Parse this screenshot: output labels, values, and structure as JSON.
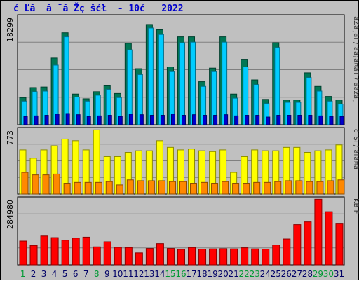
{
  "title": "ć Ľă  ă ¨ă Žç šćł  - 10ć   2022",
  "colors": {
    "background": "#c0c0c0",
    "panel": "#c0c0c0",
    "title": "#0000cc",
    "hits": "#007755",
    "files": "#00ccff",
    "pages": "#0000cc",
    "visits": "#ffff00",
    "sites": "#ff8800",
    "kbytes": "#ff0000",
    "weekday": "#000066",
    "weekend": "#009933"
  },
  "chart_data": [
    {
      "type": "bar",
      "panel": "top",
      "max_label": "18299",
      "ylim": [
        0,
        18299
      ],
      "legend_placement": "right",
      "legend": "ăŻă¸ăľ / ăă¡ă¤ăŤ / ăăźă¸",
      "categories": [
        "1",
        "2",
        "3",
        "4",
        "5",
        "6",
        "7",
        "8",
        "9",
        "10",
        "11",
        "12",
        "13",
        "14",
        "15",
        "16",
        "17",
        "18",
        "19",
        "20",
        "21",
        "22",
        "23",
        "24",
        "25",
        "26",
        "27",
        "28",
        "29",
        "30",
        "31"
      ],
      "series": [
        {
          "name": "ăŻă¸ăľ",
          "values": [
            4600,
            6300,
            6400,
            11300,
            15600,
            5200,
            4400,
            5600,
            6600,
            5300,
            13800,
            9500,
            17000,
            16100,
            9800,
            14900,
            14900,
            7300,
            9600,
            14900,
            5200,
            11100,
            7600,
            4300,
            13900,
            4200,
            4200,
            8800,
            6500,
            4800,
            4200
          ]
        },
        {
          "name": "ăăĄă¤ăŤ",
          "values": [
            4000,
            5600,
            5700,
            10100,
            14900,
            4700,
            4000,
            5000,
            6000,
            4600,
            12700,
            8500,
            16400,
            15300,
            9000,
            13900,
            14000,
            6500,
            9000,
            14000,
            4500,
            9800,
            6800,
            3600,
            13100,
            3800,
            3800,
            8000,
            5700,
            4000,
            3500
          ]
        },
        {
          "name": "ăăźă¸",
          "values": [
            1400,
            1500,
            1600,
            1800,
            1900,
            1700,
            1400,
            1500,
            1600,
            1400,
            1800,
            1700,
            1600,
            1600,
            1800,
            1600,
            1700,
            1600,
            1600,
            1700,
            1500,
            1600,
            1600,
            1300,
            1600,
            1600,
            1600,
            1600,
            1500,
            1400,
            1400
          ]
        }
      ]
    },
    {
      "type": "bar",
      "panel": "middle",
      "max_label": "773",
      "ylim": [
        0,
        773
      ],
      "legend_placement": "right",
      "legend": "č¨Şĺ / ăľă¤ă",
      "categories": [
        "1",
        "2",
        "3",
        "4",
        "5",
        "6",
        "7",
        "8",
        "9",
        "10",
        "11",
        "12",
        "13",
        "14",
        "15",
        "16",
        "17",
        "18",
        "19",
        "20",
        "21",
        "22",
        "23",
        "24",
        "25",
        "26",
        "27",
        "28",
        "29",
        "30",
        "31"
      ],
      "series": [
        {
          "name": "č¨Şĺ",
          "values": [
            530,
            430,
            530,
            580,
            660,
            640,
            530,
            770,
            450,
            450,
            500,
            520,
            520,
            640,
            560,
            530,
            540,
            520,
            510,
            530,
            260,
            450,
            530,
            520,
            520,
            560,
            560,
            500,
            520,
            530,
            590
          ]
        },
        {
          "name": "ăľă¤ă",
          "values": [
            260,
            230,
            230,
            240,
            130,
            140,
            140,
            140,
            150,
            110,
            170,
            160,
            160,
            160,
            150,
            150,
            130,
            140,
            130,
            150,
            130,
            130,
            140,
            140,
            150,
            160,
            160,
            150,
            150,
            160,
            170
          ]
        }
      ]
    },
    {
      "type": "bar",
      "panel": "bottom",
      "max_label": "284980",
      "ylim": [
        0,
        284980
      ],
      "legend_placement": "right",
      "legend": "KB F",
      "categories": [
        "1",
        "2",
        "3",
        "4",
        "5",
        "6",
        "7",
        "8",
        "9",
        "10",
        "11",
        "12",
        "13",
        "14",
        "15",
        "16",
        "17",
        "18",
        "19",
        "20",
        "21",
        "22",
        "23",
        "24",
        "25",
        "26",
        "27",
        "28",
        "29",
        "30",
        "31"
      ],
      "series": [
        {
          "name": "KB F",
          "values": [
            103000,
            84000,
            125000,
            118000,
            107000,
            116000,
            120000,
            78000,
            100000,
            76000,
            75000,
            52000,
            71000,
            92000,
            71000,
            67000,
            75000,
            68000,
            69000,
            70000,
            69000,
            74000,
            69000,
            68000,
            86000,
            112000,
            174000,
            186000,
            284000,
            230000,
            180000
          ]
        }
      ]
    }
  ],
  "weekend_days": [
    "1",
    "8",
    "15",
    "16",
    "22",
    "23",
    "29",
    "30"
  ]
}
